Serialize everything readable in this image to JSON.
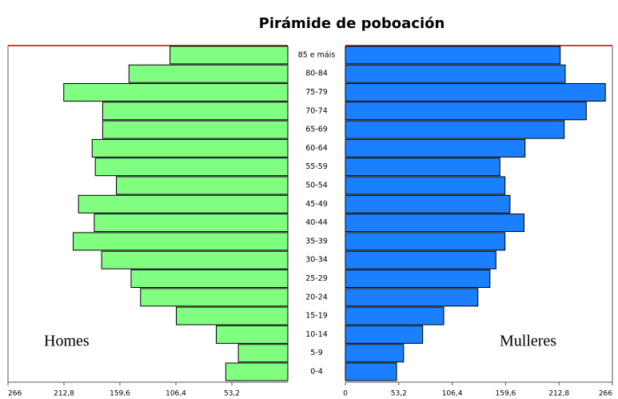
{
  "chart_data": {
    "type": "pyramid",
    "title": "Pirámide de poboación",
    "categories": [
      "0-4",
      "5-9",
      "10-14",
      "15-19",
      "20-24",
      "25-29",
      "30-34",
      "35-39",
      "40-44",
      "45-49",
      "50-54",
      "55-59",
      "60-64",
      "65-69",
      "70-74",
      "75-79",
      "80-84",
      "85 e máis"
    ],
    "series": [
      {
        "name": "Homes",
        "color": "#80ff80",
        "values": [
          59,
          47,
          68,
          106,
          140,
          149,
          177,
          204,
          184,
          199,
          163,
          183,
          186,
          176,
          176,
          213,
          151,
          112
        ]
      },
      {
        "name": "Mulleres",
        "color": "#1a80ff",
        "values": [
          51,
          58,
          77,
          98,
          132,
          144,
          150,
          159,
          178,
          164,
          159,
          154,
          179,
          218,
          240,
          259,
          219,
          214
        ]
      }
    ],
    "left_axis": {
      "xlim": [
        0,
        266
      ],
      "xticks": [
        {
          "value": 266,
          "label": "266"
        },
        {
          "value": 212.8,
          "label": "212,8"
        },
        {
          "value": 159.6,
          "label": "159,6"
        },
        {
          "value": 106.4,
          "label": "106,4"
        },
        {
          "value": 53.2,
          "label": "53,2"
        }
      ]
    },
    "right_axis": {
      "xlim": [
        0,
        266
      ],
      "xticks": [
        0,
        {
          "value": 53.2,
          "label": "53,2"
        },
        {
          "value": 106.4,
          "label": "106,4"
        },
        {
          "value": 159.6,
          "label": "159,6"
        },
        {
          "value": 212.8,
          "label": "212,8"
        },
        266
      ]
    }
  }
}
